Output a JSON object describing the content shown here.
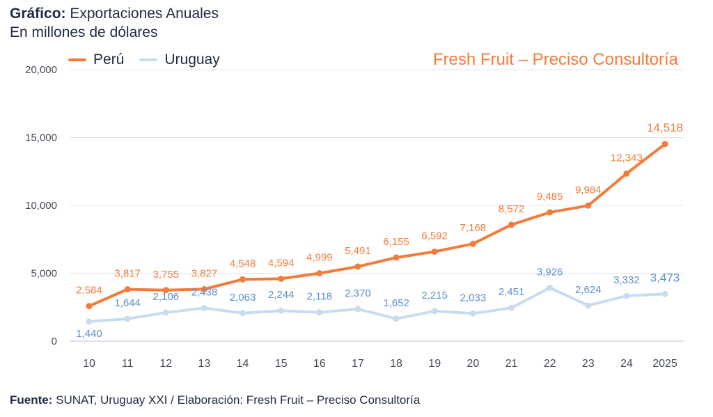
{
  "header": {
    "title_bold": "Gráfico:",
    "title_rest": " Exportaciones Anuales",
    "subtitle": "En millones de dólares"
  },
  "brand": "Fresh Fruit – Preciso Consultoría",
  "footer": {
    "label_bold": "Fuente:",
    "label_rest": " SUNAT, Uruguay XXI / Elaboración: Fresh Fruit – Preciso Consultoría"
  },
  "chart_data": {
    "type": "line",
    "title": "Exportaciones Anuales",
    "ylabel": "En millones de dólares",
    "xlabel": "",
    "categories": [
      "10",
      "11",
      "12",
      "13",
      "14",
      "15",
      "16",
      "17",
      "18",
      "19",
      "20",
      "21",
      "22",
      "23",
      "24",
      "2025"
    ],
    "ylim": [
      0,
      20000
    ],
    "yticks": [
      0,
      5000,
      10000,
      15000,
      20000
    ],
    "ytick_labels": [
      "0",
      "5,000",
      "10,000",
      "15,000",
      "20,000"
    ],
    "grid": true,
    "legend": "top-left",
    "series": [
      {
        "name": "Perú",
        "color": "#f47b3a",
        "label_color": "#f47b3a",
        "values": [
          2584,
          3817,
          3755,
          3827,
          4548,
          4594,
          4999,
          5491,
          6155,
          6592,
          7168,
          8572,
          9485,
          9984,
          12343,
          14518
        ],
        "labels": [
          "2,584",
          "3,817",
          "3,755",
          "3,827",
          "4,548",
          "4,594",
          "4,999",
          "5,491",
          "6,155",
          "6,592",
          "7,168",
          "8,572",
          "9,485",
          "9,984",
          "12,343",
          "14,518"
        ]
      },
      {
        "name": "Uruguay",
        "color": "#c8dcf0",
        "label_color": "#5b8fd0",
        "values": [
          1440,
          1644,
          2106,
          2438,
          2063,
          2244,
          2118,
          2370,
          1652,
          2215,
          2033,
          2451,
          3926,
          2624,
          3332,
          3473
        ],
        "labels": [
          "1,440",
          "1,644",
          "2,106",
          "2,438",
          "2,063",
          "2,244",
          "2,118",
          "2,370",
          "1,652",
          "2,215",
          "2,033",
          "2,451",
          "3,926",
          "2,624",
          "3,332",
          "3,473"
        ]
      }
    ]
  }
}
